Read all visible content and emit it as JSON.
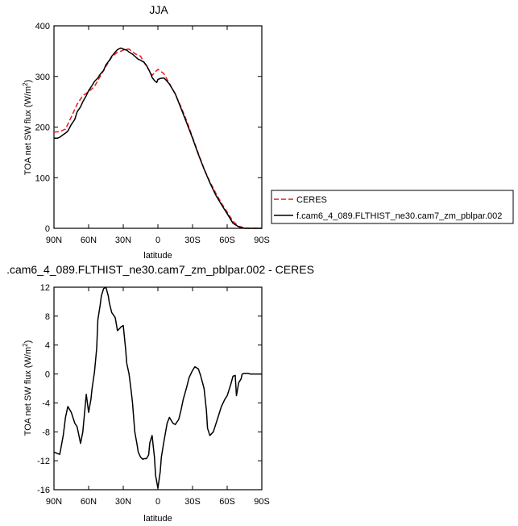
{
  "chart_data": [
    {
      "type": "line",
      "title": "JJA",
      "xlabel": "latitude",
      "ylabel": "TOA net SW flux (W/m",
      "ylabel_sup": "2",
      "ylabel_tail": ")",
      "xlim": [
        90,
        -90
      ],
      "ylim": [
        0,
        400
      ],
      "xticks": [
        90,
        60,
        30,
        0,
        -30,
        -60,
        -90
      ],
      "xtick_labels": [
        "90N",
        "60N",
        "30N",
        "0",
        "30S",
        "60S",
        "90S"
      ],
      "yticks": [
        0,
        100,
        200,
        300,
        400
      ],
      "ytick_labels": [
        "0",
        "100",
        "200",
        "300",
        "400"
      ],
      "legend": "outside-right",
      "series": [
        {
          "name": "CERES",
          "color": "#e8191c",
          "dash": true,
          "x": [
            90,
            85,
            80,
            75,
            70,
            65,
            60,
            55,
            50,
            45,
            40,
            35,
            32,
            30,
            28,
            25,
            22,
            20,
            15,
            10,
            7,
            5,
            3,
            0,
            -5,
            -10,
            -15,
            -20,
            -25,
            -30,
            -35,
            -40,
            -45,
            -50,
            -55,
            -60,
            -65,
            -70,
            -75,
            -80,
            -85,
            -90
          ],
          "y": [
            190,
            191,
            196,
            220,
            245,
            262,
            270,
            280,
            300,
            320,
            338,
            348,
            350,
            352,
            354,
            354,
            349,
            345,
            340,
            320,
            310,
            302,
            307,
            314,
            306,
            286,
            265,
            240,
            212,
            180,
            148,
            118,
            92,
            70,
            50,
            32,
            14,
            4,
            1,
            0,
            0,
            0
          ]
        },
        {
          "name": "f.cam6_4_089.FLTHIST_ne30.cam7_zm_pblpar.002",
          "color": "#000000",
          "dash": false,
          "x": [
            90,
            87,
            85,
            82,
            80,
            78,
            75,
            72,
            70,
            67,
            65,
            62,
            60,
            57,
            55,
            52,
            50,
            47,
            45,
            42,
            40,
            37,
            35,
            33,
            32,
            30,
            27,
            25,
            22,
            20,
            17,
            15,
            12,
            10,
            8,
            6,
            5,
            3,
            1,
            0,
            -2,
            -5,
            -7,
            -10,
            -15,
            -20,
            -25,
            -30,
            -35,
            -40,
            -45,
            -50,
            -55,
            -60,
            -65,
            -70,
            -75,
            -80,
            -85,
            -90
          ],
          "y": [
            178,
            178,
            180,
            185,
            188,
            192,
            205,
            215,
            230,
            240,
            250,
            262,
            272,
            282,
            290,
            297,
            304,
            312,
            323,
            332,
            340,
            348,
            353,
            355,
            356,
            354,
            352,
            348,
            344,
            340,
            334,
            332,
            328,
            322,
            314,
            304,
            298,
            292,
            288,
            294,
            296,
            297,
            293,
            285,
            266,
            237,
            208,
            178,
            146,
            117,
            90,
            66,
            47,
            29,
            10,
            3,
            0,
            0,
            0,
            0
          ]
        }
      ]
    },
    {
      "type": "line",
      "title": ".cam6_4_089.FLTHIST_ne30.cam7_zm_pblpar.002 - CERES",
      "xlabel": "latitude",
      "ylabel": "TOA net SW flux (W/m",
      "ylabel_sup": "2",
      "ylabel_tail": ")",
      "xlim": [
        90,
        -90
      ],
      "ylim": [
        -16,
        12
      ],
      "xticks": [
        90,
        60,
        30,
        0,
        -30,
        -60,
        -90
      ],
      "xtick_labels": [
        "90N",
        "60N",
        "30N",
        "0",
        "30S",
        "60S",
        "90S"
      ],
      "yticks": [
        12,
        8,
        4,
        0,
        -4,
        -8,
        -12,
        -16
      ],
      "ytick_labels": [
        "12",
        "8",
        "4",
        "0",
        "-4",
        "-8",
        "-12",
        "-16"
      ],
      "series": [
        {
          "color": "#000000",
          "dash": false,
          "x": [
            90,
            87,
            85,
            82,
            80,
            78,
            75,
            72,
            70,
            67,
            65,
            62,
            60,
            58,
            57,
            55,
            53,
            52,
            50,
            49,
            47,
            45,
            43,
            42,
            40,
            37,
            35,
            33,
            32,
            30,
            28,
            27,
            25,
            23,
            22,
            20,
            18,
            17,
            15,
            13,
            12,
            10,
            8,
            7,
            5,
            3,
            2,
            0,
            -2,
            -3,
            -5,
            -8,
            -10,
            -13,
            -15,
            -18,
            -20,
            -22,
            -25,
            -27,
            -30,
            -32,
            -35,
            -37,
            -40,
            -42,
            -43,
            -45,
            -48,
            -50,
            -53,
            -55,
            -58,
            -60,
            -63,
            -65,
            -67,
            -68,
            -70,
            -72,
            -73,
            -75,
            -78,
            -80,
            -83,
            -85,
            -88,
            -90
          ],
          "y": [
            -10.8,
            -11.0,
            -11.1,
            -8.5,
            -6.0,
            -4.5,
            -5.3,
            -6.8,
            -7.3,
            -9.6,
            -8.0,
            -2.8,
            -5.3,
            -3.5,
            -2.0,
            0.2,
            3.5,
            7.5,
            9.5,
            10.8,
            11.8,
            12.0,
            10.8,
            9.8,
            8.5,
            7.8,
            6.0,
            6.3,
            6.5,
            6.7,
            3.5,
            1.5,
            0.0,
            -2.5,
            -4.0,
            -8.0,
            -9.8,
            -10.8,
            -11.5,
            -11.8,
            -11.7,
            -11.7,
            -11.2,
            -9.5,
            -8.5,
            -11.5,
            -14.0,
            -15.8,
            -13.5,
            -11.5,
            -9.5,
            -6.8,
            -6.0,
            -6.8,
            -7.0,
            -6.3,
            -5.0,
            -3.5,
            -1.8,
            -0.5,
            0.5,
            1.0,
            0.7,
            -0.2,
            -2.0,
            -5.0,
            -7.5,
            -8.5,
            -8.0,
            -7.0,
            -5.5,
            -4.5,
            -3.5,
            -3.0,
            -1.5,
            -0.3,
            -0.2,
            -3.0,
            -1.2,
            -0.7,
            0.0,
            0.1,
            0.1,
            0.0,
            0.0,
            0.0,
            0.0,
            0.0
          ]
        }
      ]
    }
  ]
}
